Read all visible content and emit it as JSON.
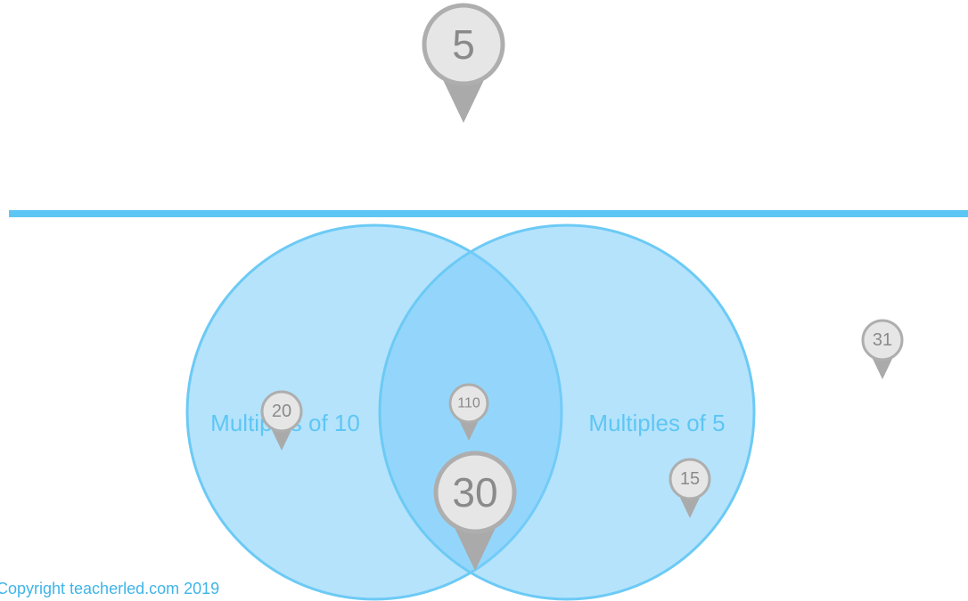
{
  "sets": [
    {
      "label": "Multiples of 10"
    },
    {
      "label": "Multiples of 5"
    }
  ],
  "pins": [
    {
      "label": "5"
    },
    {
      "label": "20"
    },
    {
      "label": "110"
    },
    {
      "label": "30"
    },
    {
      "label": "15"
    },
    {
      "label": "31"
    }
  ],
  "footer": "Copyright teacherled.com 2019"
}
